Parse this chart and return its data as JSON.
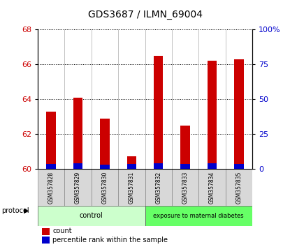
{
  "title": "GDS3687 / ILMN_69004",
  "samples": [
    "GSM357828",
    "GSM357829",
    "GSM357830",
    "GSM357831",
    "GSM357832",
    "GSM357833",
    "GSM357834",
    "GSM357835"
  ],
  "red_values": [
    63.3,
    64.1,
    62.9,
    60.7,
    66.5,
    62.5,
    66.2,
    66.3
  ],
  "blue_height_left": [
    0.28,
    0.3,
    0.25,
    0.26,
    0.3,
    0.28,
    0.32,
    0.29
  ],
  "ylim_left": [
    60,
    68
  ],
  "ylim_right": [
    0,
    100
  ],
  "yticks_left": [
    60,
    62,
    64,
    66,
    68
  ],
  "yticks_right": [
    0,
    25,
    50,
    75,
    100
  ],
  "ytick_labels_right": [
    "0",
    "25",
    "50",
    "75",
    "100%"
  ],
  "red_color": "#cc0000",
  "blue_color": "#0000cc",
  "tick_label_color_left": "#cc0000",
  "tick_label_color_right": "#0000cc",
  "base_value": 60,
  "bar_width": 0.35,
  "light_green": "#ccffcc",
  "dark_green": "#66ff66",
  "gray_box": "#d8d8d8"
}
